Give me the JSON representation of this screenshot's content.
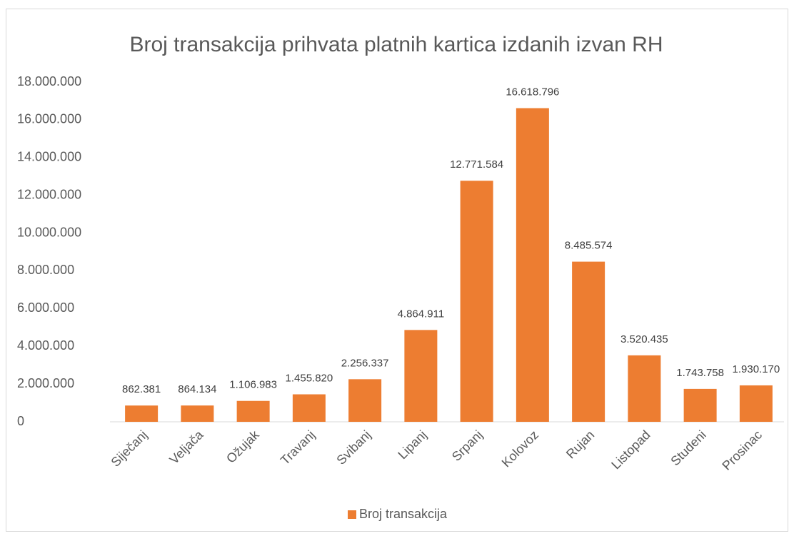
{
  "chart_data": {
    "type": "bar",
    "title": "Broj transakcija prihvata platnih kartica izdanih izvan RH",
    "categories": [
      "Siječanj",
      "Veljača",
      "Ožujak",
      "Travanj",
      "Svibanj",
      "Lipanj",
      "Srpanj",
      "Kolovoz",
      "Rujan",
      "Listopad",
      "Studeni",
      "Prosinac"
    ],
    "series": [
      {
        "name": "Broj transakcija",
        "color": "#ed7d31",
        "values": [
          862381,
          864134,
          1106983,
          1455820,
          2256337,
          4864911,
          12771584,
          16618796,
          8485574,
          3520435,
          1743758,
          1930170
        ],
        "value_labels": [
          "862.381",
          "864.134",
          "1.106.983",
          "1.455.820",
          "2.256.337",
          "4.864.911",
          "12.771.584",
          "16.618.796",
          "8.485.574",
          "3.520.435",
          "1.743.758",
          "1.930.170"
        ]
      }
    ],
    "ylim": [
      0,
      18000000
    ],
    "yticks": [
      0,
      {
        "value": 2000000,
        "label": "2.000.000"
      },
      {
        "value": 4000000,
        "label": "4.000.000"
      },
      {
        "value": 6000000,
        "label": "6.000.000"
      },
      {
        "value": 8000000,
        "label": "8.000.000"
      },
      {
        "value": 10000000,
        "label": "10.000.000"
      },
      {
        "value": 12000000,
        "label": "12.000.000"
      },
      {
        "value": 14000000,
        "label": "14.000.000"
      },
      {
        "value": 16000000,
        "label": "16.000.000"
      },
      {
        "value": 18000000,
        "label": "18.000.000"
      }
    ],
    "grid": false,
    "legend": "bottom"
  }
}
